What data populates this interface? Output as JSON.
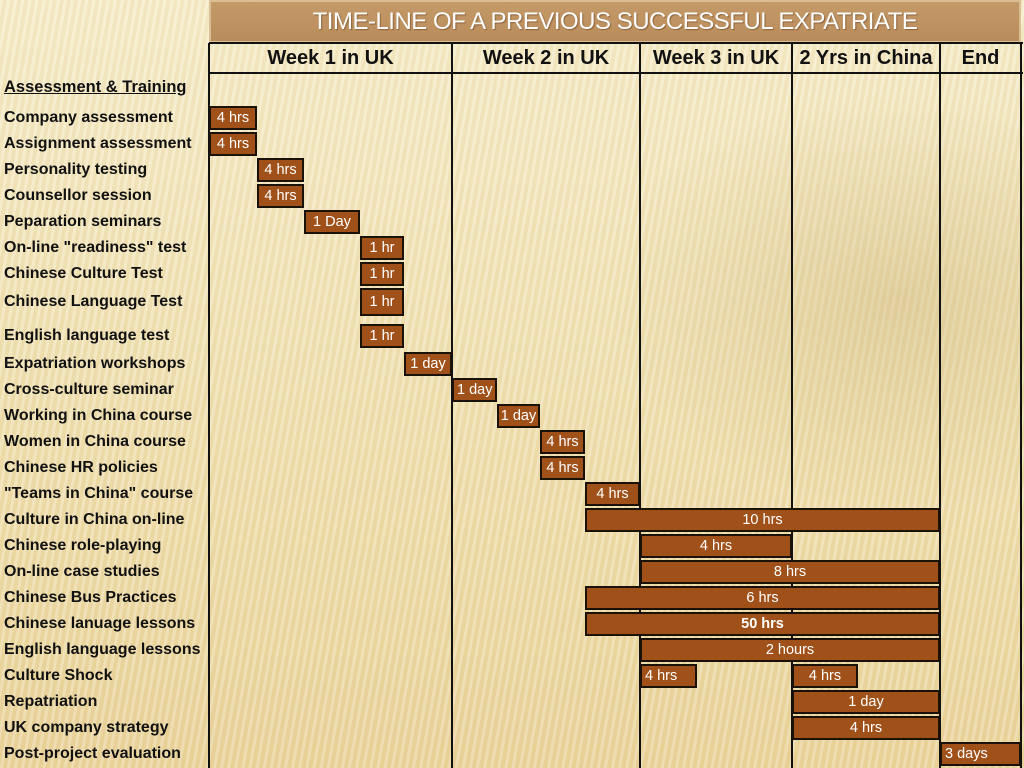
{
  "title": "TIME-LINE OF  A PREVIOUS SUCCESSFUL EXPATRIATE",
  "section": "Assessment & Training",
  "columns": [
    "Week 1 in UK",
    "Week 2 in UK",
    "Week 3 in UK",
    "2 Yrs in China",
    "End"
  ],
  "colors": {
    "bar": "#a0511a",
    "bar_border": "#1a1208",
    "title_bg": "#c49a68"
  },
  "rows": [
    {
      "label": "Company assessment",
      "bars": [
        {
          "text": "4 hrs"
        }
      ]
    },
    {
      "label": "Assignment assessment",
      "bars": [
        {
          "text": "4 hrs"
        }
      ]
    },
    {
      "label": "Personality testing",
      "bars": [
        {
          "text": "4 hrs"
        }
      ]
    },
    {
      "label": "Counsellor session",
      "bars": [
        {
          "text": "4 hrs"
        }
      ]
    },
    {
      "label": "Peparation seminars",
      "bars": [
        {
          "text": "1 Day"
        }
      ]
    },
    {
      "label": "On-line \"readiness\" test",
      "bars": [
        {
          "text": "1 hr"
        }
      ]
    },
    {
      "label": "Chinese Culture Test",
      "bars": [
        {
          "text": "1 hr"
        }
      ]
    },
    {
      "label": "Chinese Language Test",
      "bars": [
        {
          "text": "1 hr"
        }
      ]
    },
    {
      "label": "English language test",
      "bars": [
        {
          "text": "1 hr"
        }
      ]
    },
    {
      "label": "Expatriation workshops",
      "bars": [
        {
          "text": "1 day"
        }
      ]
    },
    {
      "label": "Cross-culture seminar",
      "bars": [
        {
          "text": "1 day"
        }
      ]
    },
    {
      "label": "Working in China course",
      "bars": [
        {
          "text": "1 day"
        }
      ]
    },
    {
      "label": "Women in China course",
      "bars": [
        {
          "text": "4 hrs"
        }
      ]
    },
    {
      "label": "Chinese HR policies",
      "bars": [
        {
          "text": "4 hrs"
        }
      ]
    },
    {
      "label": "\"Teams in China\" course",
      "bars": [
        {
          "text": "4 hrs"
        }
      ]
    },
    {
      "label": "Culture in China on-line",
      "bars": [
        {
          "text": "10 hrs"
        }
      ]
    },
    {
      "label": "Chinese role-playing",
      "bars": [
        {
          "text": "4 hrs"
        }
      ]
    },
    {
      "label": "On-line case studies",
      "bars": [
        {
          "text": "8 hrs"
        }
      ]
    },
    {
      "label": "Chinese Bus Practices",
      "bars": [
        {
          "text": "6 hrs"
        }
      ]
    },
    {
      "label": "Chinese lanuage lessons",
      "bars": [
        {
          "text": "50 hrs"
        }
      ]
    },
    {
      "label": "English language lessons",
      "bars": [
        {
          "text": "2 hours"
        }
      ]
    },
    {
      "label": "Culture Shock",
      "bars": [
        {
          "text": "4 hrs"
        },
        {
          "text": "4 hrs"
        }
      ]
    },
    {
      "label": "Repatriation",
      "bars": [
        {
          "text": "1 day"
        }
      ]
    },
    {
      "label": "UK company strategy",
      "bars": [
        {
          "text": "4 hrs"
        }
      ]
    },
    {
      "label": "Post-project evaluation",
      "bars": [
        {
          "text": "3 days"
        }
      ]
    }
  ]
}
